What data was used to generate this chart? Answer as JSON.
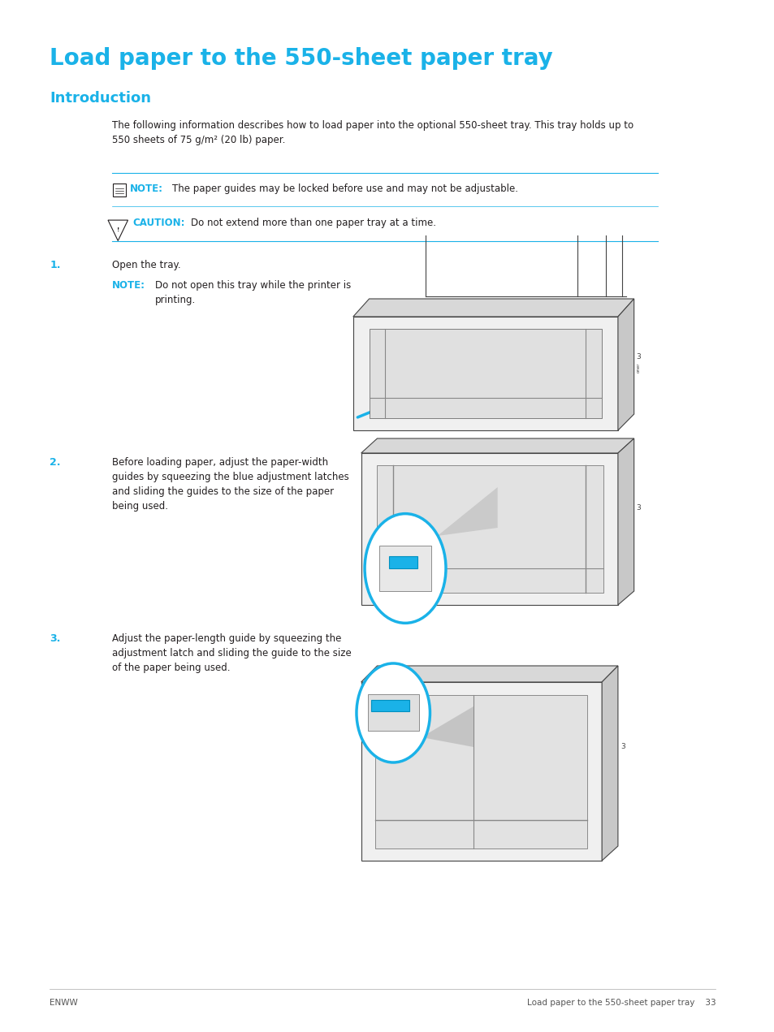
{
  "title": "Load paper to the 550-sheet paper tray",
  "subtitle": "Introduction",
  "body_text": "The following information describes how to load paper into the optional 550-sheet tray. This tray holds up to\n550 sheets of 75 g/m² (20 lb) paper.",
  "note1_label": "NOTE:",
  "note1_text": "The paper guides may be locked before use and may not be adjustable.",
  "caution_label": "CAUTION:",
  "caution_text": "Do not extend more than one paper tray at a time.",
  "step1_num": "1.",
  "step1_text": "Open the tray.",
  "step1_note_label": "NOTE:",
  "step1_note_text": "Do not open this tray while the printer is\nprinting.",
  "step2_num": "2.",
  "step2_text": "Before loading paper, adjust the paper-width\nguides by squeezing the blue adjustment latches\nand sliding the guides to the size of the paper\nbeing used.",
  "step3_num": "3.",
  "step3_text": "Adjust the paper-length guide by squeezing the\nadjustment latch and sliding the guide to the size\nof the paper being used.",
  "footer_left": "ENWW",
  "footer_right": "Load paper to the 550-sheet paper tray",
  "footer_page": "33",
  "title_color": "#1ab2e8",
  "subtitle_color": "#1ab2e8",
  "step_num_color": "#1ab2e8",
  "note_label_color": "#1ab2e8",
  "caution_label_color": "#1ab2e8",
  "body_color": "#231f20",
  "line_color": "#1ab2e8",
  "bg_color": "#ffffff"
}
